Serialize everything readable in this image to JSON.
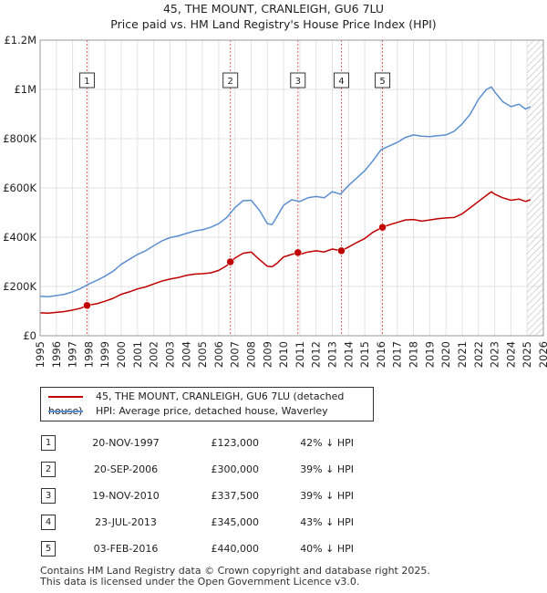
{
  "header": {
    "title": "45, THE MOUNT, CRANLEIGH, GU6 7LU",
    "subtitle": "Price paid vs. HM Land Registry's House Price Index (HPI)"
  },
  "colors": {
    "property": "#c00000",
    "hpi": "#5b8fd0",
    "marker_line": "#e06060",
    "forecast_hatch": "#bbbbbb",
    "grid": "#e3e3e3"
  },
  "chart_data": {
    "type": "line",
    "x_range": [
      1995,
      2026
    ],
    "ylim": [
      0,
      1200000
    ],
    "y_ticks": [
      {
        "value": 0,
        "label": "£0"
      },
      {
        "value": 200000,
        "label": "£200K"
      },
      {
        "value": 400000,
        "label": "£400K"
      },
      {
        "value": 600000,
        "label": "£600K"
      },
      {
        "value": 800000,
        "label": "£800K"
      },
      {
        "value": 1000000,
        "label": "£1M"
      },
      {
        "value": 1200000,
        "label": "£1.2M"
      }
    ],
    "x_ticks": [
      "1995",
      "1996",
      "1997",
      "1998",
      "1999",
      "2000",
      "2001",
      "2002",
      "2003",
      "2004",
      "2005",
      "2006",
      "2007",
      "2008",
      "2009",
      "2010",
      "2011",
      "2012",
      "2013",
      "2014",
      "2015",
      "2016",
      "2017",
      "2018",
      "2019",
      "2020",
      "2021",
      "2022",
      "2023",
      "2024",
      "2025",
      "2026"
    ],
    "grid": true,
    "forecast_start": 2025.0,
    "series": [
      {
        "name": "45, THE MOUNT, CRANLEIGH, GU6 7LU (detached house)",
        "color": "#c00000",
        "x": [
          1995.0,
          1995.5,
          1996.0,
          1996.5,
          1997.0,
          1997.5,
          1997.89,
          1998.5,
          1999.0,
          1999.5,
          2000.0,
          2000.5,
          2001.0,
          2001.5,
          2002.0,
          2002.5,
          2003.0,
          2003.5,
          2004.0,
          2004.5,
          2005.0,
          2005.5,
          2006.0,
          2006.5,
          2006.72,
          2007.0,
          2007.5,
          2008.0,
          2008.5,
          2009.0,
          2009.3,
          2009.6,
          2010.0,
          2010.5,
          2010.88,
          2011.0,
          2011.5,
          2012.0,
          2012.5,
          2013.0,
          2013.56,
          2014.0,
          2014.5,
          2015.0,
          2015.5,
          2016.09,
          2016.5,
          2017.0,
          2017.5,
          2018.0,
          2018.5,
          2019.0,
          2019.5,
          2020.0,
          2020.5,
          2021.0,
          2021.5,
          2022.0,
          2022.5,
          2022.8,
          2023.0,
          2023.5,
          2024.0,
          2024.5,
          2024.9,
          2025.2
        ],
        "y": [
          93000,
          92000,
          95000,
          98000,
          104000,
          112000,
          123000,
          130000,
          140000,
          152000,
          168000,
          178000,
          190000,
          198000,
          210000,
          222000,
          230000,
          236000,
          245000,
          250000,
          252000,
          255000,
          265000,
          285000,
          300000,
          315000,
          335000,
          340000,
          310000,
          282000,
          280000,
          295000,
          320000,
          330000,
          337500,
          330000,
          340000,
          345000,
          340000,
          352000,
          345000,
          360000,
          378000,
          395000,
          420000,
          440000,
          450000,
          460000,
          470000,
          472000,
          465000,
          470000,
          475000,
          478000,
          480000,
          495000,
          520000,
          545000,
          570000,
          585000,
          575000,
          560000,
          550000,
          555000,
          545000,
          552000
        ]
      },
      {
        "name": "HPI: Average price, detached house, Waverley",
        "color": "#5b8fd0",
        "x": [
          1995.0,
          1995.5,
          1996.0,
          1996.5,
          1997.0,
          1997.5,
          1998.0,
          1998.5,
          1999.0,
          1999.5,
          2000.0,
          2000.5,
          2001.0,
          2001.5,
          2002.0,
          2002.5,
          2003.0,
          2003.5,
          2004.0,
          2004.5,
          2005.0,
          2005.5,
          2006.0,
          2006.5,
          2007.0,
          2007.5,
          2008.0,
          2008.5,
          2009.0,
          2009.3,
          2009.6,
          2010.0,
          2010.5,
          2011.0,
          2011.5,
          2012.0,
          2012.5,
          2013.0,
          2013.5,
          2014.0,
          2014.5,
          2015.0,
          2015.5,
          2016.0,
          2016.5,
          2017.0,
          2017.5,
          2018.0,
          2018.5,
          2019.0,
          2019.5,
          2020.0,
          2020.5,
          2021.0,
          2021.5,
          2022.0,
          2022.5,
          2022.8,
          2023.0,
          2023.5,
          2024.0,
          2024.5,
          2024.9,
          2025.2
        ],
        "y": [
          160000,
          158000,
          163000,
          168000,
          178000,
          192000,
          210000,
          225000,
          242000,
          262000,
          290000,
          310000,
          330000,
          345000,
          365000,
          385000,
          398000,
          405000,
          415000,
          425000,
          430000,
          440000,
          455000,
          480000,
          520000,
          548000,
          550000,
          510000,
          455000,
          452000,
          485000,
          530000,
          552000,
          545000,
          560000,
          565000,
          560000,
          585000,
          575000,
          610000,
          640000,
          670000,
          710000,
          755000,
          770000,
          785000,
          805000,
          815000,
          810000,
          808000,
          812000,
          815000,
          830000,
          860000,
          900000,
          960000,
          1000000,
          1010000,
          990000,
          950000,
          930000,
          940000,
          920000,
          930000
        ]
      }
    ],
    "markers": [
      {
        "label": "1",
        "x": 1997.89,
        "y": 123000
      },
      {
        "label": "2",
        "x": 2006.72,
        "y": 300000
      },
      {
        "label": "3",
        "x": 2010.88,
        "y": 337500
      },
      {
        "label": "4",
        "x": 2013.56,
        "y": 345000
      },
      {
        "label": "5",
        "x": 2016.09,
        "y": 440000
      }
    ]
  },
  "legend": {
    "items": [
      {
        "label": "45, THE MOUNT, CRANLEIGH, GU6 7LU (detached house)",
        "color": "#c00000"
      },
      {
        "label": "HPI: Average price, detached house, Waverley",
        "color": "#5b8fd0"
      }
    ]
  },
  "sales": [
    {
      "num": "1",
      "date": "20-NOV-1997",
      "price": "£123,000",
      "hpi": "42% ↓ HPI"
    },
    {
      "num": "2",
      "date": "20-SEP-2006",
      "price": "£300,000",
      "hpi": "39% ↓ HPI"
    },
    {
      "num": "3",
      "date": "19-NOV-2010",
      "price": "£337,500",
      "hpi": "39% ↓ HPI"
    },
    {
      "num": "4",
      "date": "23-JUL-2013",
      "price": "£345,000",
      "hpi": "43% ↓ HPI"
    },
    {
      "num": "5",
      "date": "03-FEB-2016",
      "price": "£440,000",
      "hpi": "40% ↓ HPI"
    }
  ],
  "footer": {
    "line1": "Contains HM Land Registry data © Crown copyright and database right 2025.",
    "line2": "This data is licensed under the Open Government Licence v3.0."
  }
}
